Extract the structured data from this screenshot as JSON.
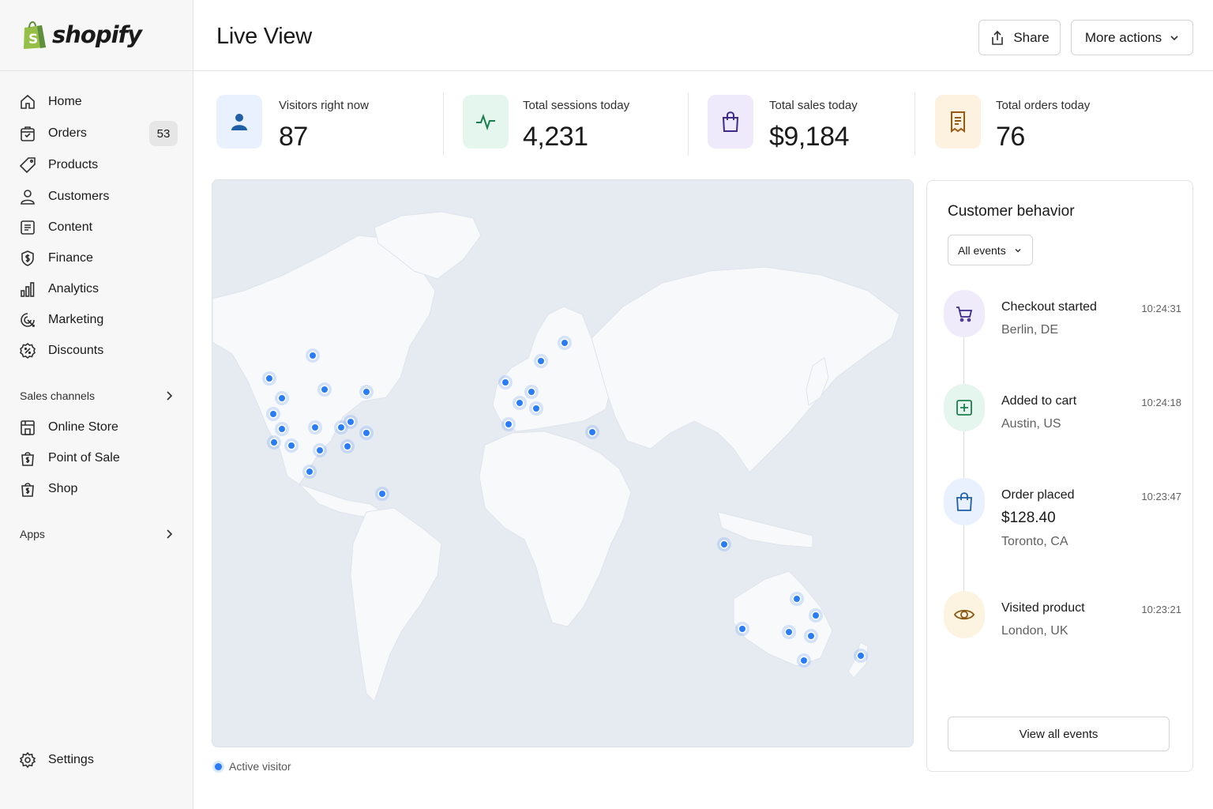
{
  "brand": {
    "name": "shopify",
    "color": "#95bf47"
  },
  "sidebar": {
    "items": [
      {
        "label": "Home",
        "icon": "home-icon"
      },
      {
        "label": "Orders",
        "icon": "orders-icon",
        "badge": "53"
      },
      {
        "label": "Products",
        "icon": "tag-icon"
      },
      {
        "label": "Customers",
        "icon": "person-icon"
      },
      {
        "label": "Content",
        "icon": "content-icon"
      },
      {
        "label": "Finance",
        "icon": "finance-icon"
      },
      {
        "label": "Analytics",
        "icon": "bar-chart-icon"
      },
      {
        "label": "Marketing",
        "icon": "target-icon"
      },
      {
        "label": "Discounts",
        "icon": "discount-icon"
      }
    ],
    "sales_channels_label": "Sales channels",
    "channels": [
      {
        "label": "Online Store",
        "icon": "store-icon"
      },
      {
        "label": "Point of Sale",
        "icon": "pos-bag-icon"
      },
      {
        "label": "Shop",
        "icon": "shop-bag-icon"
      }
    ],
    "apps_label": "Apps",
    "settings_label": "Settings"
  },
  "header": {
    "title": "Live View",
    "share_label": "Share",
    "more_actions_label": "More actions"
  },
  "stats": [
    {
      "label": "Visitors right now",
      "value": "87",
      "icon": "person-icon",
      "bg": "#e8f1fd",
      "color": "#1f5fa8"
    },
    {
      "label": "Total sessions today",
      "value": "4,231",
      "icon": "pulse-icon",
      "bg": "#e5f6ee",
      "color": "#1a7f4e"
    },
    {
      "label": "Total sales today",
      "value": "$9,184",
      "icon": "shopping-bag-icon",
      "bg": "#eeeafb",
      "color": "#3d2a8a"
    },
    {
      "label": "Total orders today",
      "value": "76",
      "icon": "receipt-icon",
      "bg": "#fdf1e0",
      "color": "#9a5a12"
    }
  ],
  "map": {
    "legend_label": "Active visitor",
    "dot_color": "#2a7cf6"
  },
  "behavior": {
    "title": "Customer behavior",
    "filter_value": "All events",
    "events": [
      {
        "title": "Checkout started",
        "location": "Berlin, DE",
        "time": "10:24:31",
        "icon": "cart-icon",
        "bg": "#efebfb",
        "color": "#3d2a8a"
      },
      {
        "title": "Added to cart",
        "location": "Austin, US",
        "time": "10:24:18",
        "icon": "add-to-cart-icon",
        "bg": "#e5f6ee",
        "color": "#1a7f4e"
      },
      {
        "title": "Order placed",
        "amount": "$128.40",
        "location": "Toronto, CA",
        "time": "10:23:47",
        "icon": "shopping-bag-icon",
        "bg": "#e8f1fd",
        "color": "#1f5fa8"
      },
      {
        "title": "Visited product",
        "location": "London, UK",
        "time": "10:23:21",
        "icon": "eye-icon",
        "bg": "#fdf3e1",
        "color": "#8a5a14"
      }
    ],
    "view_all_label": "View all events"
  }
}
